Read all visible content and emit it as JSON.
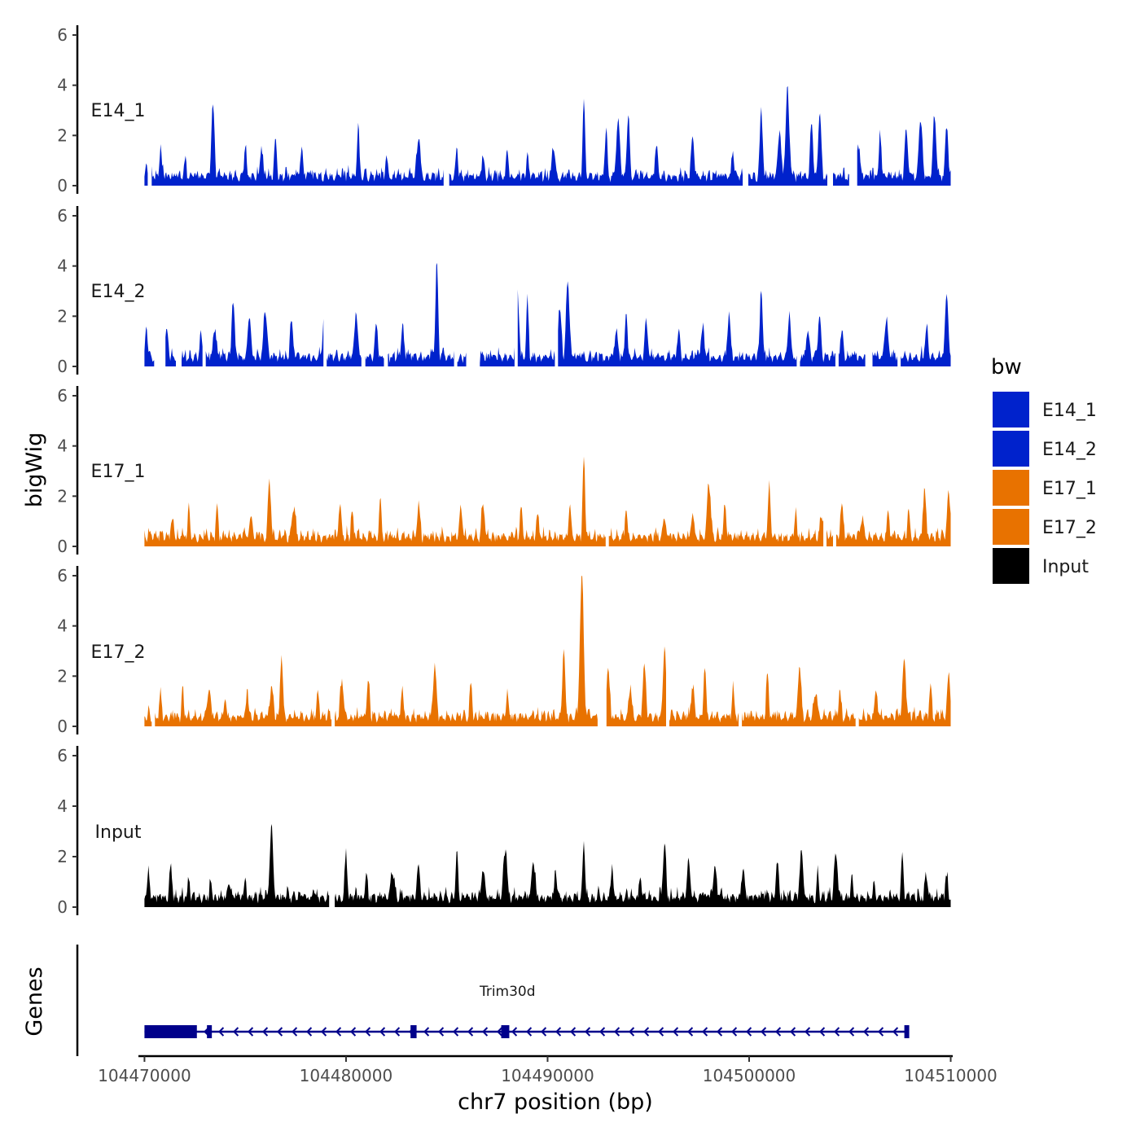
{
  "chart_data": {
    "type": "area",
    "title": "",
    "ylabel": "bigWig",
    "xlabel": "chr7 position (bp)",
    "ylim": [
      0,
      6
    ],
    "y_ticks": [
      0,
      2,
      4,
      6
    ],
    "xlim": [
      104469700,
      104510100
    ],
    "x_ticks": [
      104470000,
      104480000,
      104490000,
      104500000,
      104510000
    ],
    "x_tick_labels": [
      "104470000",
      "104480000",
      "104490000",
      "104500000",
      "104510000"
    ],
    "data_range": [
      104470000,
      104510000
    ],
    "legend": {
      "title": "bw",
      "entries": [
        {
          "label": "E14_1",
          "color": "#0022CC"
        },
        {
          "label": "E14_2",
          "color": "#0022CC"
        },
        {
          "label": "E17_1",
          "color": "#E87200"
        },
        {
          "label": "E17_2",
          "color": "#E87200"
        },
        {
          "label": "Input",
          "color": "#000000"
        }
      ]
    },
    "series": [
      {
        "name": "E14_1",
        "color": "#0022CC",
        "peaks": [
          [
            104470100,
            0.8
          ],
          [
            104470800,
            1.5
          ],
          [
            104472000,
            0.9
          ],
          [
            104473400,
            3.1
          ],
          [
            104475000,
            1.6
          ],
          [
            104475800,
            1.5
          ],
          [
            104476500,
            1.8
          ],
          [
            104477800,
            1.6
          ],
          [
            104480600,
            2.3
          ],
          [
            104482000,
            1.2
          ],
          [
            104483600,
            1.9
          ],
          [
            104485500,
            1.5
          ],
          [
            104486800,
            1.0
          ],
          [
            104488000,
            1.4
          ],
          [
            104489000,
            1.3
          ],
          [
            104490300,
            1.5
          ],
          [
            104491800,
            3.4
          ],
          [
            104492900,
            2.2
          ],
          [
            104493500,
            2.5
          ],
          [
            104494000,
            2.8
          ],
          [
            104495400,
            1.6
          ],
          [
            104497200,
            1.9
          ],
          [
            104499200,
            1.3
          ],
          [
            104500600,
            3.1
          ],
          [
            104501500,
            2.0
          ],
          [
            104501900,
            3.6
          ],
          [
            104503100,
            2.5
          ],
          [
            104503500,
            2.9
          ],
          [
            104505400,
            1.6
          ],
          [
            104506500,
            2.1
          ],
          [
            104507800,
            2.0
          ],
          [
            104508500,
            2.6
          ],
          [
            104509200,
            2.6
          ],
          [
            104509800,
            2.3
          ]
        ],
        "gaps": [
          [
            104470200,
            104470350
          ],
          [
            104484850,
            104485100
          ],
          [
            104499700,
            104499950
          ],
          [
            104503900,
            104504150
          ],
          [
            104505000,
            104505350
          ]
        ]
      },
      {
        "name": "E14_2",
        "color": "#0022CC",
        "peaks": [
          [
            104470100,
            1.6
          ],
          [
            104471100,
            1.3
          ],
          [
            104472800,
            1.1
          ],
          [
            104473500,
            1.3
          ],
          [
            104474400,
            2.6
          ],
          [
            104475200,
            2.0
          ],
          [
            104476000,
            2.2
          ],
          [
            104477300,
            1.7
          ],
          [
            104478900,
            2.0
          ],
          [
            104480500,
            2.0
          ],
          [
            104481500,
            1.6
          ],
          [
            104482800,
            1.6
          ],
          [
            104484500,
            4.0
          ],
          [
            104486300,
            2.6
          ],
          [
            104488500,
            2.9
          ],
          [
            104489000,
            2.5
          ],
          [
            104490600,
            2.3
          ],
          [
            104491000,
            3.3
          ],
          [
            104493400,
            1.4
          ],
          [
            104493900,
            2.3
          ],
          [
            104494900,
            1.6
          ],
          [
            104496500,
            1.4
          ],
          [
            104497700,
            1.4
          ],
          [
            104499000,
            2.0
          ],
          [
            104500600,
            3.1
          ],
          [
            104502000,
            2.2
          ],
          [
            104502900,
            1.3
          ],
          [
            104503500,
            1.9
          ],
          [
            104504600,
            1.4
          ],
          [
            104506000,
            1.3
          ],
          [
            104506800,
            1.8
          ],
          [
            104508800,
            1.5
          ],
          [
            104509800,
            3.0
          ]
        ],
        "gaps": [
          [
            104470500,
            104471000
          ],
          [
            104471600,
            104471800
          ],
          [
            104472900,
            104473000
          ],
          [
            104478900,
            104479000
          ],
          [
            104480800,
            104480950
          ],
          [
            104481900,
            104482050
          ],
          [
            104485400,
            104485500
          ],
          [
            104486000,
            104486600
          ],
          [
            104488400,
            104488500
          ],
          [
            104490400,
            104490500
          ],
          [
            104502400,
            104502500
          ],
          [
            104504300,
            104504400
          ],
          [
            104505800,
            104506100
          ],
          [
            104507400,
            104507500
          ]
        ]
      },
      {
        "name": "E17_1",
        "color": "#E87200",
        "peaks": [
          [
            104470200,
            0.5
          ],
          [
            104471400,
            1.0
          ],
          [
            104472200,
            1.5
          ],
          [
            104473600,
            1.6
          ],
          [
            104475300,
            1.1
          ],
          [
            104476200,
            2.5
          ],
          [
            104477400,
            1.5
          ],
          [
            104479700,
            1.6
          ],
          [
            104480300,
            1.3
          ],
          [
            104481700,
            1.8
          ],
          [
            104483600,
            1.6
          ],
          [
            104485700,
            1.5
          ],
          [
            104486800,
            1.6
          ],
          [
            104488700,
            1.5
          ],
          [
            104489500,
            1.2
          ],
          [
            104491100,
            1.7
          ],
          [
            104491800,
            3.5
          ],
          [
            104493900,
            1.5
          ],
          [
            104495800,
            1.2
          ],
          [
            104497200,
            1.3
          ],
          [
            104498000,
            2.5
          ],
          [
            104498800,
            1.6
          ],
          [
            104501000,
            2.3
          ],
          [
            104502300,
            1.3
          ],
          [
            104503600,
            1.2
          ],
          [
            104504600,
            1.6
          ],
          [
            104505600,
            1.1
          ],
          [
            104506900,
            1.4
          ],
          [
            104507900,
            1.5
          ],
          [
            104508700,
            2.3
          ],
          [
            104509900,
            1.9
          ]
        ],
        "gaps": [
          [
            104492900,
            104493000
          ],
          [
            104503700,
            104503800
          ],
          [
            104504200,
            104504300
          ]
        ]
      },
      {
        "name": "E17_2",
        "color": "#E87200",
        "peaks": [
          [
            104470200,
            0.5
          ],
          [
            104470800,
            1.3
          ],
          [
            104471900,
            1.2
          ],
          [
            104473200,
            1.5
          ],
          [
            104474000,
            1.2
          ],
          [
            104475100,
            1.3
          ],
          [
            104476300,
            1.5
          ],
          [
            104476800,
            2.7
          ],
          [
            104478600,
            1.3
          ],
          [
            104479800,
            1.7
          ],
          [
            104481100,
            1.7
          ],
          [
            104482800,
            1.3
          ],
          [
            104484400,
            2.2
          ],
          [
            104486200,
            1.7
          ],
          [
            104488000,
            1.3
          ],
          [
            104490800,
            3.1
          ],
          [
            104491700,
            6.0
          ],
          [
            104493000,
            2.4
          ],
          [
            104494100,
            1.5
          ],
          [
            104494800,
            2.3
          ],
          [
            104495800,
            3.0
          ],
          [
            104497200,
            1.5
          ],
          [
            104497800,
            2.3
          ],
          [
            104499200,
            1.5
          ],
          [
            104500900,
            2.1
          ],
          [
            104502500,
            2.3
          ],
          [
            104503300,
            1.3
          ],
          [
            104504500,
            1.2
          ],
          [
            104506300,
            1.4
          ],
          [
            104507700,
            2.7
          ],
          [
            104509000,
            1.6
          ],
          [
            104509900,
            1.9
          ]
        ],
        "gaps": [
          [
            104470400,
            104470500
          ],
          [
            104479300,
            104479400
          ],
          [
            104492500,
            104492900
          ],
          [
            104495900,
            104496000
          ],
          [
            104499500,
            104499600
          ],
          [
            104505300,
            104505400
          ]
        ]
      },
      {
        "name": "Input",
        "color": "#000000",
        "peaks": [
          [
            104470200,
            1.3
          ],
          [
            104471300,
            1.5
          ],
          [
            104472200,
            1.1
          ],
          [
            104473300,
            1.0
          ],
          [
            104474200,
            1.0
          ],
          [
            104475000,
            1.1
          ],
          [
            104476300,
            3.0
          ],
          [
            104477100,
            0.7
          ],
          [
            104478400,
            0.6
          ],
          [
            104480000,
            2.0
          ],
          [
            104481000,
            1.3
          ],
          [
            104482300,
            1.4
          ],
          [
            104483600,
            1.6
          ],
          [
            104485500,
            2.2
          ],
          [
            104486800,
            1.4
          ],
          [
            104487900,
            2.2
          ],
          [
            104489300,
            1.6
          ],
          [
            104490400,
            1.5
          ],
          [
            104491800,
            2.5
          ],
          [
            104493200,
            1.6
          ],
          [
            104494600,
            1.3
          ],
          [
            104495800,
            2.4
          ],
          [
            104497000,
            1.7
          ],
          [
            104498300,
            1.6
          ],
          [
            104499700,
            1.5
          ],
          [
            104501400,
            1.7
          ],
          [
            104502600,
            2.0
          ],
          [
            104503400,
            1.3
          ],
          [
            104504300,
            2.1
          ],
          [
            104505100,
            1.2
          ],
          [
            104506200,
            0.9
          ],
          [
            104507600,
            2.0
          ],
          [
            104508800,
            1.2
          ],
          [
            104509800,
            1.1
          ]
        ],
        "gaps": [
          [
            104479200,
            104479400
          ]
        ]
      }
    ],
    "genes_track": {
      "ylabel": "Genes",
      "genes": [
        {
          "name": "Trim30d",
          "strand": "-",
          "start": 104470000,
          "end": 104507800,
          "color": "#00008B",
          "exons": [
            [
              104470000,
              104472600
            ],
            [
              104473100,
              104473250
            ],
            [
              104483200,
              104483500
            ],
            [
              104487700,
              104488100
            ],
            [
              104507700,
              104507800
            ]
          ]
        }
      ]
    }
  }
}
